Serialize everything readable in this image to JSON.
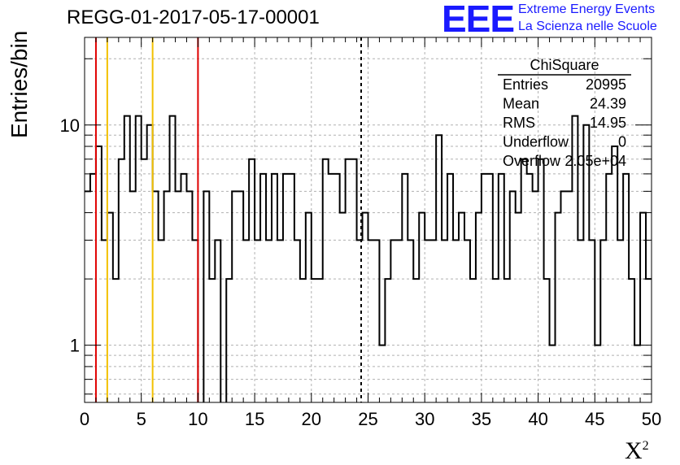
{
  "logo": {
    "mark": "EEE",
    "line1": "Extreme Energy Events",
    "line2": "La Scienza nelle Scuole",
    "color": "#1a1aff"
  },
  "chart_data": {
    "type": "histogram",
    "title": "REGG-01-2017-05-17-00001",
    "xlabel": "X",
    "xlabel_superscript": "2",
    "ylabel": "Entries/bin",
    "xlim": [
      0,
      50
    ],
    "ylim": [
      0.55,
      25
    ],
    "y_scale": "log",
    "grid": true,
    "bin_width": 0.5,
    "x_ticks": [
      0,
      5,
      10,
      15,
      20,
      25,
      30,
      35,
      40,
      45,
      50
    ],
    "y_ticks": [
      1,
      10
    ],
    "values": [
      5,
      6,
      8,
      3,
      4,
      2,
      7,
      11,
      5,
      11,
      7,
      10,
      5,
      3,
      5,
      11,
      5,
      6,
      5,
      3,
      0,
      5,
      2,
      3,
      0,
      2,
      5,
      5,
      3,
      7,
      3,
      6,
      3,
      6,
      3,
      6,
      6,
      3,
      2,
      4,
      2,
      2,
      7,
      6,
      6,
      4,
      7,
      7,
      3,
      4,
      3,
      3,
      1,
      2,
      3,
      3,
      6,
      3,
      2,
      4,
      3,
      3,
      9,
      3,
      6,
      3,
      4,
      3,
      2,
      4,
      6,
      6,
      2,
      6,
      2,
      5,
      4,
      7,
      6,
      5,
      7,
      2,
      1,
      4,
      5,
      5,
      11,
      3,
      10,
      3,
      1,
      3,
      6,
      8,
      3,
      6,
      2,
      1,
      4,
      2
    ],
    "vertical_lines": [
      {
        "x": 1,
        "color": "#e00000",
        "style": "solid"
      },
      {
        "x": 2,
        "color": "#f2c000",
        "style": "solid"
      },
      {
        "x": 6,
        "color": "#f2c000",
        "style": "solid"
      },
      {
        "x": 10,
        "color": "#e00000",
        "style": "solid"
      },
      {
        "x": 24.39,
        "color": "#000000",
        "style": "dashed"
      }
    ],
    "stats_box": {
      "title": "ChiSquare",
      "entries": [
        {
          "label": "Entries",
          "value": "20995"
        },
        {
          "label": "Mean",
          "value": "24.39"
        },
        {
          "label": "RMS",
          "value": "14.95"
        },
        {
          "label": "Underflow",
          "value": "0"
        },
        {
          "label": "Overflow",
          "value": "2.05e+04"
        }
      ]
    }
  }
}
